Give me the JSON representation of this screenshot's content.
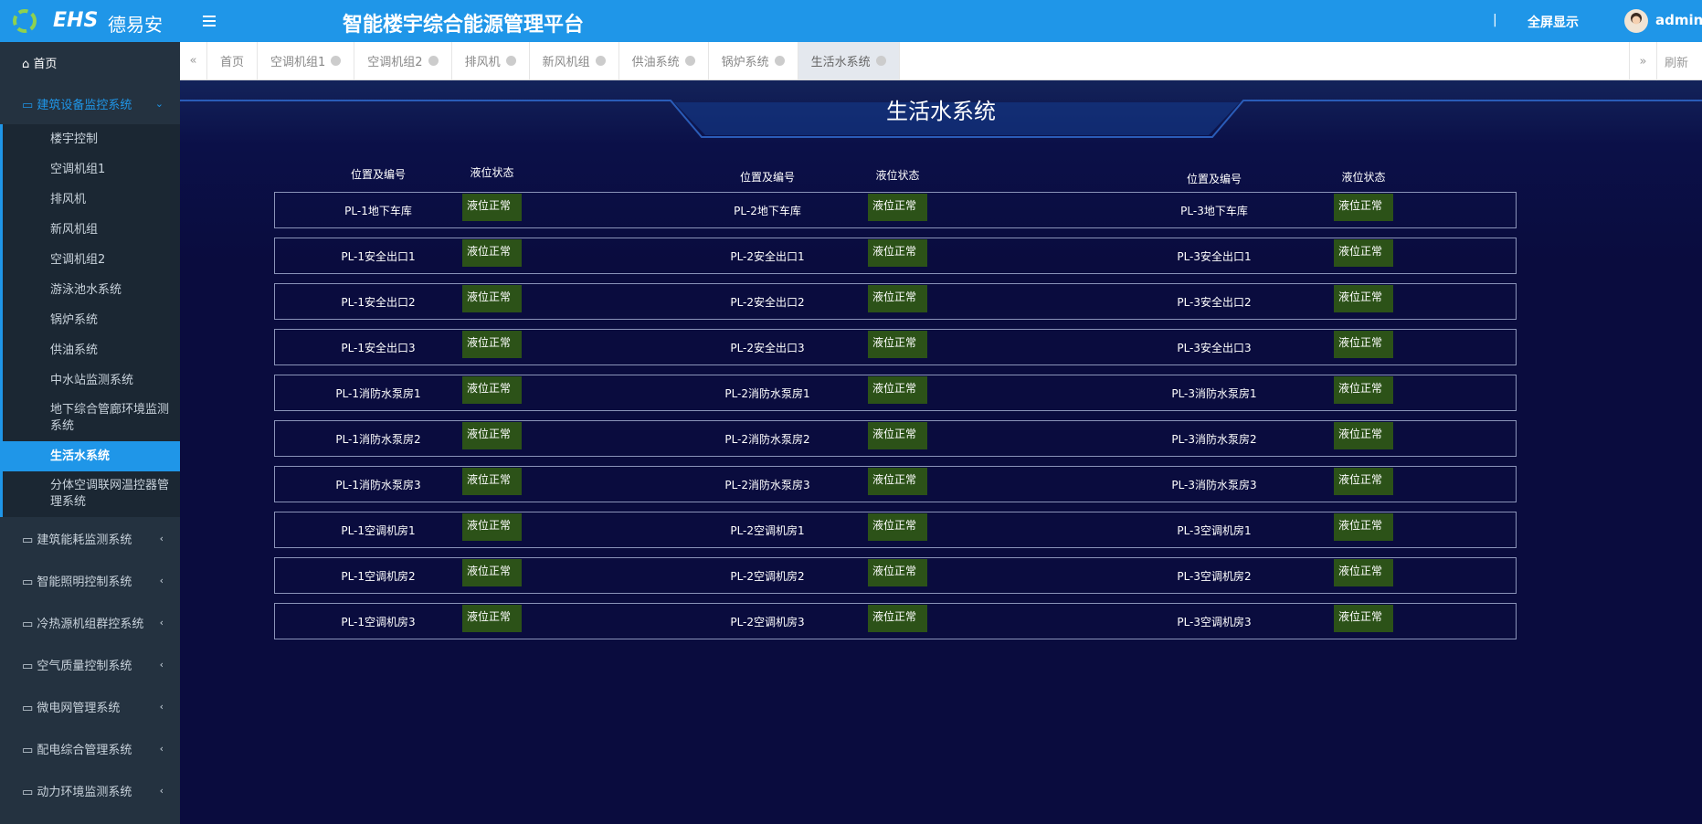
{
  "header": {
    "logo": "EHS",
    "brand": "德易安",
    "title": "智能楼宇综合能源管理平台",
    "separator": "|",
    "fullscreen": "全屏显示",
    "user": "admin"
  },
  "sidebar": {
    "home": "首页",
    "groups": [
      {
        "label": "建筑设备监控系统",
        "items": [
          "楼宇控制",
          "空调机组1",
          "排风机",
          "新风机组",
          "空调机组2",
          "游泳池水系统",
          "锅炉系统",
          "供油系统",
          "中水站监测系统",
          "地下综合管廊环境监测系统",
          "生活水系统",
          "分体空调联网温控器管理系统"
        ]
      },
      {
        "label": "建筑能耗监测系统"
      },
      {
        "label": "智能照明控制系统"
      },
      {
        "label": "冷热源机组群控系统"
      },
      {
        "label": "空气质量控制系统"
      },
      {
        "label": "微电网管理系统"
      },
      {
        "label": "配电综合管理系统"
      },
      {
        "label": "动力环境监测系统"
      }
    ]
  },
  "tabs": {
    "items": [
      "首页",
      "空调机组1",
      "空调机组2",
      "排风机",
      "新风机组",
      "供油系统",
      "锅炉系统",
      "生活水系统"
    ],
    "refresh": "刷新"
  },
  "panel": {
    "title": "生活水系统",
    "columns": [
      "位置及编号",
      "液位状态"
    ],
    "rows": [
      [
        {
          "location": "PL-1地下车库",
          "status": "液位正常"
        },
        {
          "location": "PL-2地下车库",
          "status": "液位正常"
        },
        {
          "location": "PL-3地下车库",
          "status": "液位正常"
        }
      ],
      [
        {
          "location": "PL-1安全出口1",
          "status": "液位正常"
        },
        {
          "location": "PL-2安全出口1",
          "status": "液位正常"
        },
        {
          "location": "PL-3安全出口1",
          "status": "液位正常"
        }
      ],
      [
        {
          "location": "PL-1安全出口2",
          "status": "液位正常"
        },
        {
          "location": "PL-2安全出口2",
          "status": "液位正常"
        },
        {
          "location": "PL-3安全出口2",
          "status": "液位正常"
        }
      ],
      [
        {
          "location": "PL-1安全出口3",
          "status": "液位正常"
        },
        {
          "location": "PL-2安全出口3",
          "status": "液位正常"
        },
        {
          "location": "PL-3安全出口3",
          "status": "液位正常"
        }
      ],
      [
        {
          "location": "PL-1消防水泵房1",
          "status": "液位正常"
        },
        {
          "location": "PL-2消防水泵房1",
          "status": "液位正常"
        },
        {
          "location": "PL-3消防水泵房1",
          "status": "液位正常"
        }
      ],
      [
        {
          "location": "PL-1消防水泵房2",
          "status": "液位正常"
        },
        {
          "location": "PL-2消防水泵房2",
          "status": "液位正常"
        },
        {
          "location": "PL-3消防水泵房2",
          "status": "液位正常"
        }
      ],
      [
        {
          "location": "PL-1消防水泵房3",
          "status": "液位正常"
        },
        {
          "location": "PL-2消防水泵房3",
          "status": "液位正常"
        },
        {
          "location": "PL-3消防水泵房3",
          "status": "液位正常"
        }
      ],
      [
        {
          "location": "PL-1空调机房1",
          "status": "液位正常"
        },
        {
          "location": "PL-2空调机房1",
          "status": "液位正常"
        },
        {
          "location": "PL-3空调机房1",
          "status": "液位正常"
        }
      ],
      [
        {
          "location": "PL-1空调机房2",
          "status": "液位正常"
        },
        {
          "location": "PL-2空调机房2",
          "status": "液位正常"
        },
        {
          "location": "PL-3空调机房2",
          "status": "液位正常"
        }
      ],
      [
        {
          "location": "PL-1空调机房3",
          "status": "液位正常"
        },
        {
          "location": "PL-2空调机房3",
          "status": "液位正常"
        },
        {
          "location": "PL-3空调机房3",
          "status": "液位正常"
        }
      ]
    ]
  }
}
